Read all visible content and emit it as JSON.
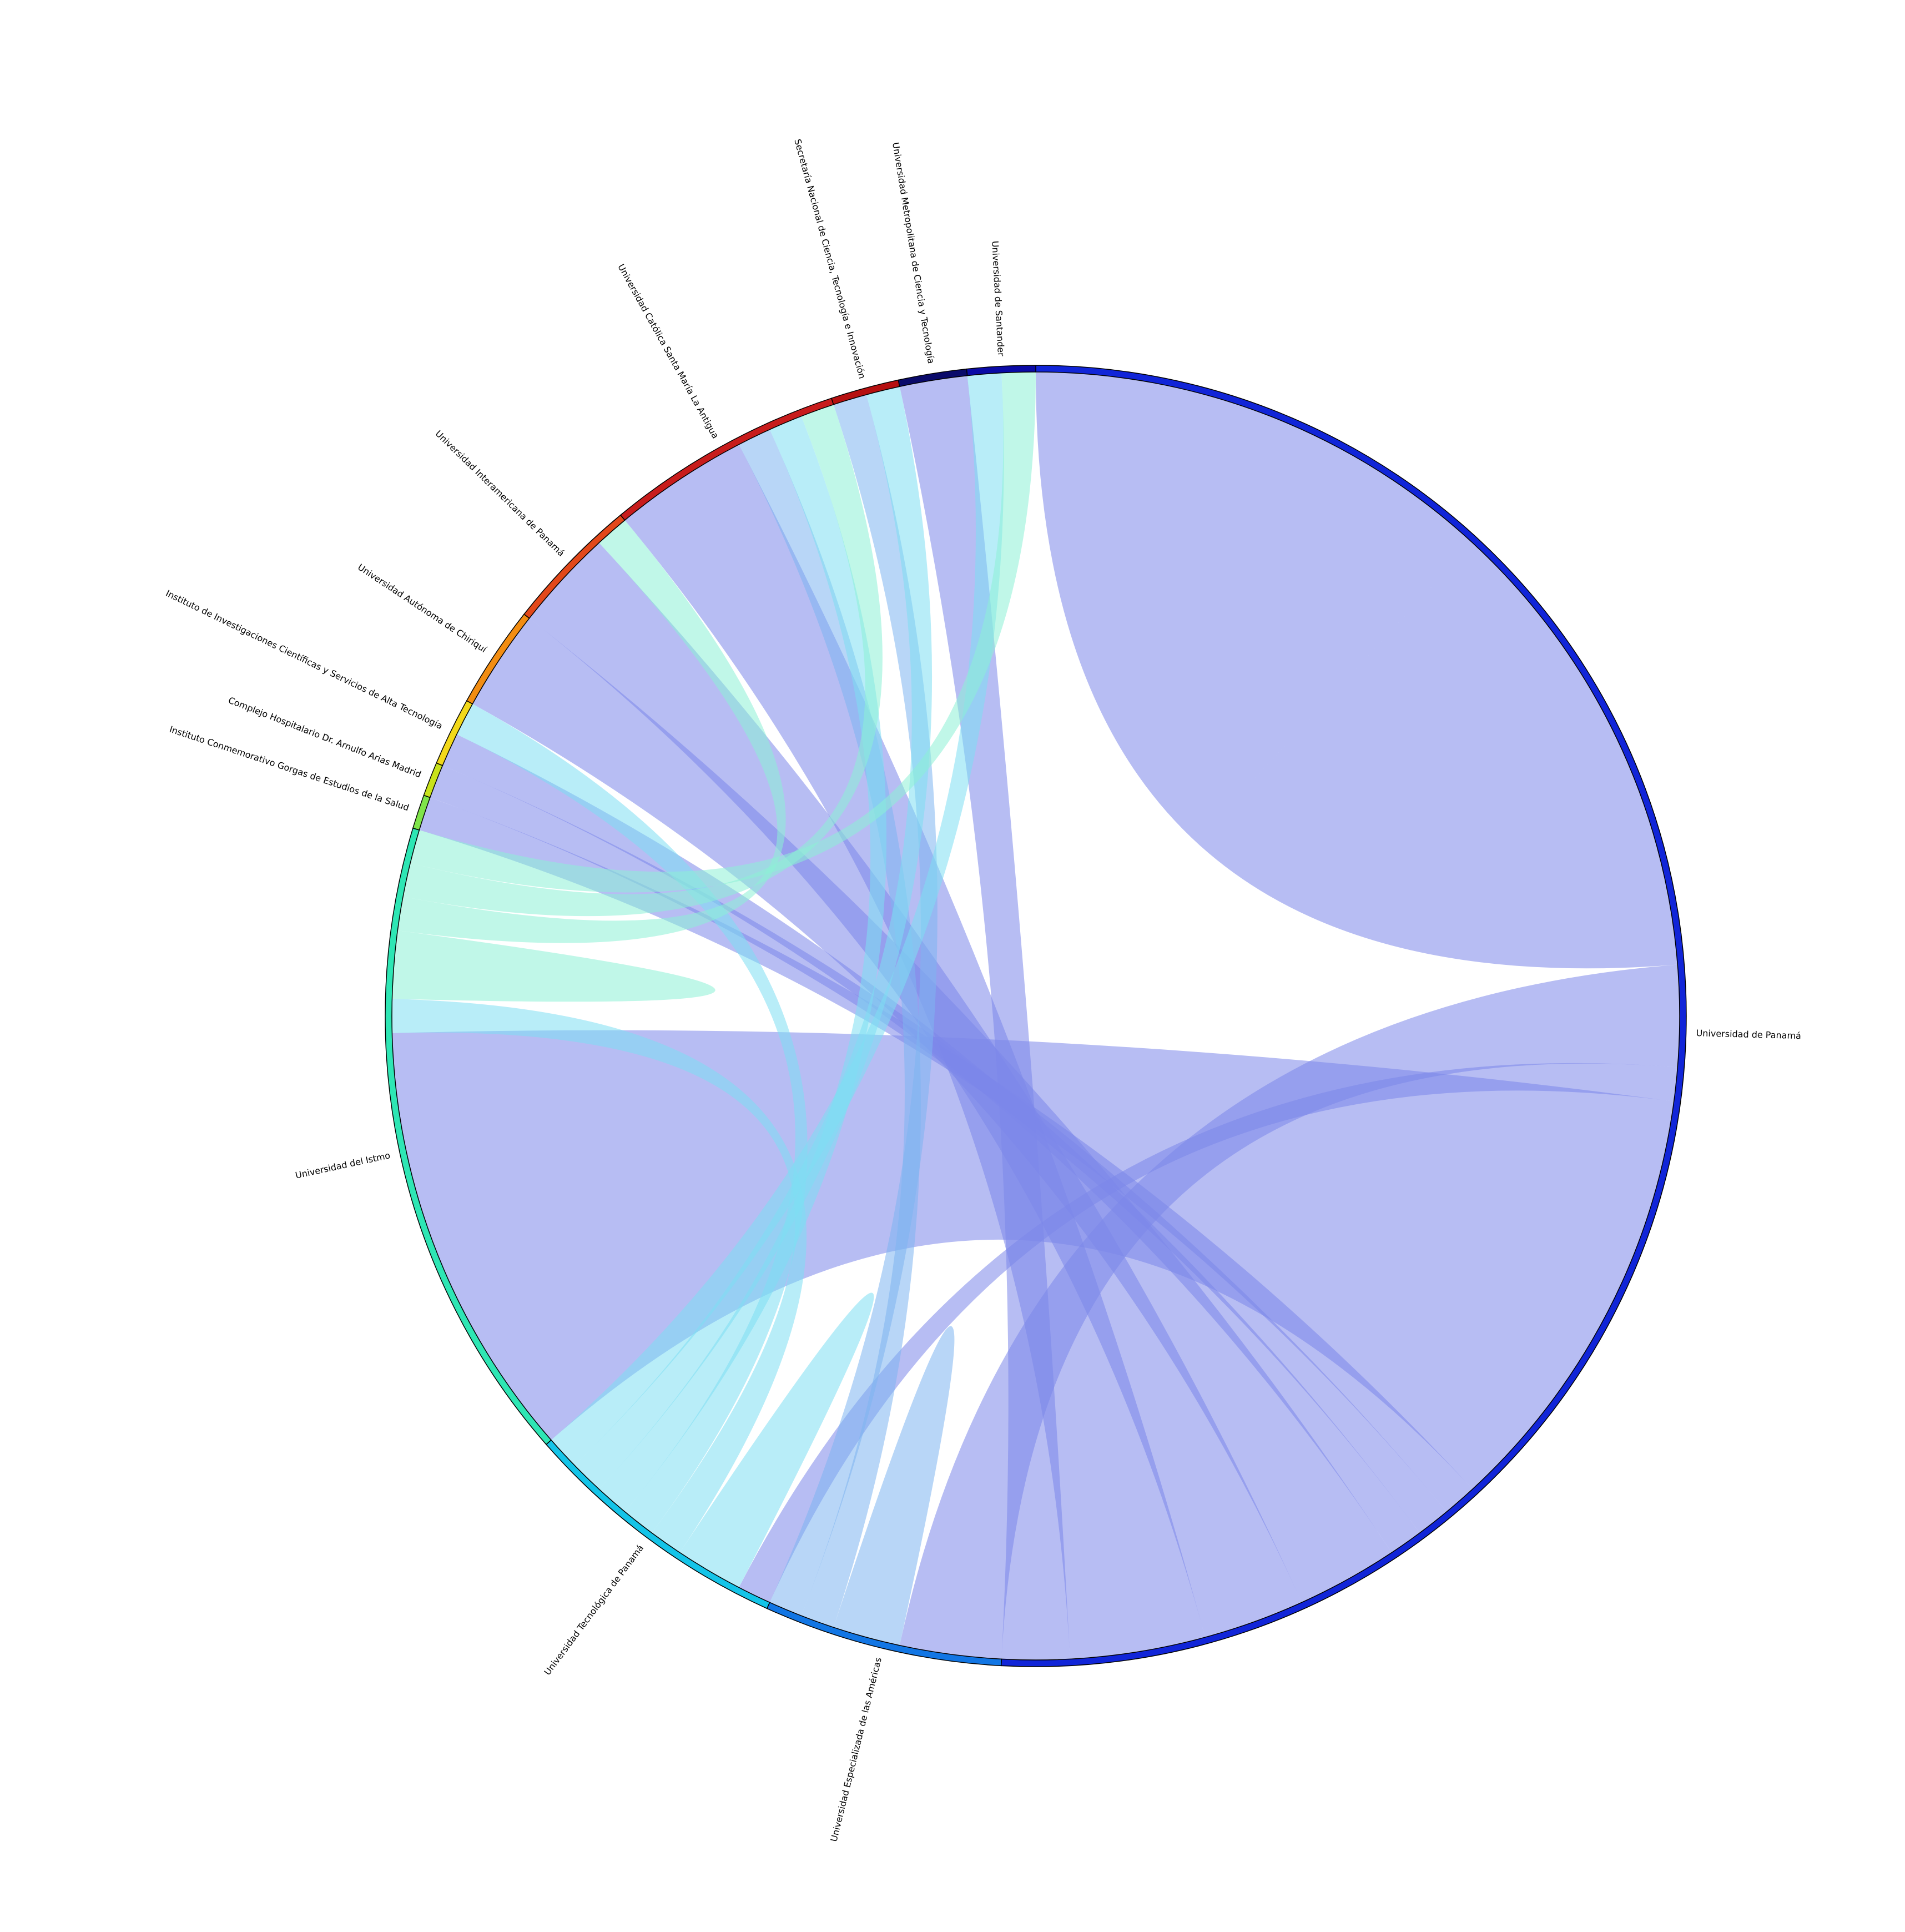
{
  "chart_data": {
    "type": "chord",
    "title": "",
    "nodes": [
      {
        "name": "Universidad de Panamá",
        "color": "#1125d8"
      },
      {
        "name": "Universidad Especializada de las Américas",
        "color": "#1276e4"
      },
      {
        "name": "Universidad Tecnológica de Panamá",
        "color": "#14c4e8"
      },
      {
        "name": "Universidad del Istmo",
        "color": "#2ee6b4"
      },
      {
        "name": "Instituto Conmemorativo Gorgas de Estudios de la Salud",
        "color": "#7fe44a"
      },
      {
        "name": "Complejo Hospitalario Dr. Arnulfo Arias Madrid",
        "color": "#c8e21c"
      },
      {
        "name": "Instituto de Investigaciones Científicas y Servicios de Alta Tecnología",
        "color": "#f2d81a"
      },
      {
        "name": "Universidad Autónoma de Chiriquí",
        "color": "#f28d12"
      },
      {
        "name": "Universidad Interamericana de Panamá",
        "color": "#e2481a"
      },
      {
        "name": "Universidad Católica Santa María La Antigua",
        "color": "#c81c1c"
      },
      {
        "name": "Secretaría Nacional de Ciencia, Tecnología e Innovación",
        "color": "#b61010"
      },
      {
        "name": "Universidad Metropolitana de Ciencia y Tecnología",
        "color": "#0a0a6a"
      },
      {
        "name": "Universidad de Santander",
        "color": "#0a0aa6"
      }
    ],
    "links": [
      {
        "source": "Universidad de Panamá",
        "target": "Universidad de Panamá",
        "value": 14
      },
      {
        "source": "Universidad de Panamá",
        "target": "Universidad Especializada de las Américas",
        "value": 3
      },
      {
        "source": "Universidad de Panamá",
        "target": "Universidad Tecnológica de Panamá",
        "value": 1
      },
      {
        "source": "Universidad de Panamá",
        "target": "Universidad del Istmo",
        "value": 13
      },
      {
        "source": "Universidad de Panamá",
        "target": "Instituto Conmemorativo Gorgas de Estudios de la Salud",
        "value": 1
      },
      {
        "source": "Universidad de Panamá",
        "target": "Complejo Hospitalario Dr. Arnulfo Arias Madrid",
        "value": 1
      },
      {
        "source": "Universidad de Panamá",
        "target": "Instituto de Investigaciones Científicas y Servicios de Alta Tecnología",
        "value": 1
      },
      {
        "source": "Universidad de Panamá",
        "target": "Universidad Autónoma de Chiriquí",
        "value": 3
      },
      {
        "source": "Universidad de Panamá",
        "target": "Universidad Interamericana de Panamá",
        "value": 3
      },
      {
        "source": "Universidad de Panamá",
        "target": "Universidad Católica Santa María La Antigua",
        "value": 4
      },
      {
        "source": "Universidad de Panamá",
        "target": "Universidad Metropolitana de Ciencia y Tecnología",
        "value": 2
      },
      {
        "source": "Universidad Especializada de las Américas",
        "target": "Universidad Especializada de las Américas",
        "value": 1
      },
      {
        "source": "Universidad Especializada de las Américas",
        "target": "Universidad Católica Santa María La Antigua",
        "value": 1
      },
      {
        "source": "Universidad Especializada de las Américas",
        "target": "Secretaría Nacional de Ciencia, Tecnología e Innovación",
        "value": 1
      },
      {
        "source": "Universidad Tecnológica de Panamá",
        "target": "Universidad Tecnológica de Panamá",
        "value": 1
      },
      {
        "source": "Universidad Tecnológica de Panamá",
        "target": "Universidad del Istmo",
        "value": 1
      },
      {
        "source": "Universidad Tecnológica de Panamá",
        "target": "Instituto de Investigaciones Científicas y Servicios de Alta Tecnología",
        "value": 1
      },
      {
        "source": "Universidad Tecnológica de Panamá",
        "target": "Universidad Católica Santa María La Antigua",
        "value": 1
      },
      {
        "source": "Universidad Tecnológica de Panamá",
        "target": "Secretaría Nacional de Ciencia, Tecnología e Innovación",
        "value": 1
      },
      {
        "source": "Universidad Tecnológica de Panamá",
        "target": "Universidad de Santander",
        "value": 1
      },
      {
        "source": "Universidad del Istmo",
        "target": "Universidad del Istmo",
        "value": 1
      },
      {
        "source": "Universidad del Istmo",
        "target": "Universidad Interamericana de Panamá",
        "value": 1
      },
      {
        "source": "Universidad del Istmo",
        "target": "Universidad Católica Santa María La Antigua",
        "value": 1
      },
      {
        "source": "Universidad del Istmo",
        "target": "Universidad de Santander",
        "value": 1
      },
      {
        "source": "Universidad Tecnológica de Panamá",
        "target": "Universidad Tecnológica de Panamá",
        "value": 0
      }
    ]
  }
}
